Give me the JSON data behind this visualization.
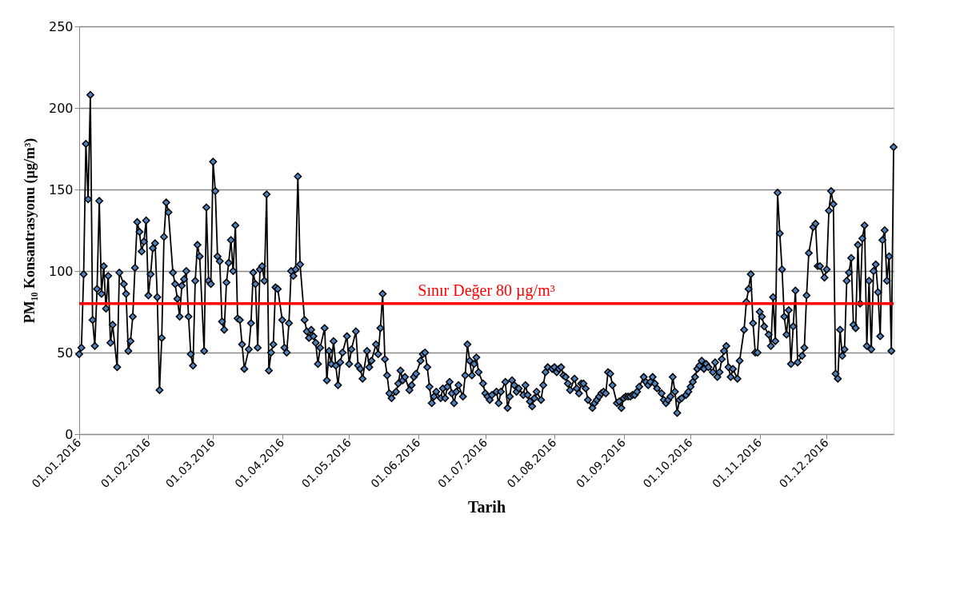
{
  "chart_data": {
    "type": "line",
    "xlabel": "Tarih",
    "ylabel": "PM₁₀ Konsantrasyonu (µg/m³)",
    "xlim": [
      "2016-01-01",
      "2016-12-31"
    ],
    "xticks": [
      {
        "value": "2016-01-01",
        "label": "01.01.2016"
      },
      {
        "value": "2016-02-01",
        "label": "01.02.2016"
      },
      {
        "value": "2016-03-01",
        "label": "01.03.2016"
      },
      {
        "value": "2016-04-01",
        "label": "01.04.2016"
      },
      {
        "value": "2016-05-01",
        "label": "01.05.2016"
      },
      {
        "value": "2016-06-01",
        "label": "01.06.2016"
      },
      {
        "value": "2016-07-01",
        "label": "01.07.2016"
      },
      {
        "value": "2016-08-01",
        "label": "01.08.2016"
      },
      {
        "value": "2016-09-01",
        "label": "01.09.2016"
      },
      {
        "value": "2016-10-01",
        "label": "01.10.2016"
      },
      {
        "value": "2016-11-01",
        "label": "01.11.2016"
      },
      {
        "value": "2016-12-01",
        "label": "01.12.2016"
      }
    ],
    "ylim": [
      0,
      250
    ],
    "yticks": [
      0,
      50,
      100,
      150,
      200,
      250
    ],
    "grid": "y",
    "legend": false,
    "marker": "diamond",
    "line_style": "solid",
    "ref_lines": [
      {
        "axis": "y",
        "value": 80,
        "label": "Sınır Değer 80 µg/m³",
        "color": "#ff0000",
        "line_style": "solid"
      }
    ],
    "series": [
      {
        "color": "#4f81bd",
        "x": [
          "2016-01-01",
          "2016-01-02",
          "2016-01-03",
          "2016-01-04",
          "2016-01-05",
          "2016-01-06",
          "2016-01-07",
          "2016-01-08",
          "2016-01-09",
          "2016-01-10",
          "2016-01-11",
          "2016-01-12",
          "2016-01-13",
          "2016-01-14",
          "2016-01-15",
          "2016-01-16",
          "2016-01-18",
          "2016-01-19",
          "2016-01-21",
          "2016-01-22",
          "2016-01-23",
          "2016-01-24",
          "2016-01-25",
          "2016-01-26",
          "2016-01-27",
          "2016-01-28",
          "2016-01-29",
          "2016-01-30",
          "2016-01-31",
          "2016-02-01",
          "2016-02-02",
          "2016-02-03",
          "2016-02-04",
          "2016-02-05",
          "2016-02-06",
          "2016-02-07",
          "2016-02-08",
          "2016-02-09",
          "2016-02-10",
          "2016-02-12",
          "2016-02-13",
          "2016-02-14",
          "2016-02-15",
          "2016-02-16",
          "2016-02-17",
          "2016-02-18",
          "2016-02-19",
          "2016-02-20",
          "2016-02-21",
          "2016-02-22",
          "2016-02-23",
          "2016-02-24",
          "2016-02-26",
          "2016-02-27",
          "2016-02-28",
          "2016-02-29",
          "2016-03-01",
          "2016-03-02",
          "2016-03-03",
          "2016-03-04",
          "2016-03-05",
          "2016-03-06",
          "2016-03-07",
          "2016-03-08",
          "2016-03-09",
          "2016-03-10",
          "2016-03-11",
          "2016-03-12",
          "2016-03-13",
          "2016-03-14",
          "2016-03-15",
          "2016-03-17",
          "2016-03-18",
          "2016-03-19",
          "2016-03-20",
          "2016-03-21",
          "2016-03-22",
          "2016-03-23",
          "2016-03-24",
          "2016-03-25",
          "2016-03-26",
          "2016-03-27",
          "2016-03-28",
          "2016-03-29",
          "2016-03-30",
          "2016-04-01",
          "2016-04-02",
          "2016-04-03",
          "2016-04-04",
          "2016-04-05",
          "2016-04-06",
          "2016-04-07",
          "2016-04-08",
          "2016-04-09",
          "2016-04-11",
          "2016-04-12",
          "2016-04-13",
          "2016-04-14",
          "2016-04-15",
          "2016-04-16",
          "2016-04-17",
          "2016-04-18",
          "2016-04-20",
          "2016-04-21",
          "2016-04-22",
          "2016-04-23",
          "2016-04-24",
          "2016-04-25",
          "2016-04-26",
          "2016-04-27",
          "2016-04-28",
          "2016-04-30",
          "2016-05-01",
          "2016-05-02",
          "2016-05-04",
          "2016-05-05",
          "2016-05-06",
          "2016-05-07",
          "2016-05-09",
          "2016-05-10",
          "2016-05-11",
          "2016-05-13",
          "2016-05-14",
          "2016-05-15",
          "2016-05-16",
          "2016-05-17",
          "2016-05-18",
          "2016-05-19",
          "2016-05-20",
          "2016-05-22",
          "2016-05-23",
          "2016-05-24",
          "2016-05-25",
          "2016-05-26",
          "2016-05-28",
          "2016-05-29",
          "2016-05-30",
          "2016-05-31",
          "2016-06-02",
          "2016-06-03",
          "2016-06-04",
          "2016-06-05",
          "2016-06-06",
          "2016-06-07",
          "2016-06-08",
          "2016-06-09",
          "2016-06-11",
          "2016-06-12",
          "2016-06-13",
          "2016-06-14",
          "2016-06-15",
          "2016-06-16",
          "2016-06-17",
          "2016-06-18",
          "2016-06-19",
          "2016-06-21",
          "2016-06-22",
          "2016-06-23",
          "2016-06-24",
          "2016-06-25",
          "2016-06-26",
          "2016-06-27",
          "2016-06-28",
          "2016-06-30",
          "2016-07-01",
          "2016-07-02",
          "2016-07-03",
          "2016-07-04",
          "2016-07-06",
          "2016-07-07",
          "2016-07-08",
          "2016-07-10",
          "2016-07-11",
          "2016-07-12",
          "2016-07-13",
          "2016-07-14",
          "2016-07-15",
          "2016-07-16",
          "2016-07-18",
          "2016-07-19",
          "2016-07-20",
          "2016-07-21",
          "2016-07-22",
          "2016-07-23",
          "2016-07-24",
          "2016-07-26",
          "2016-07-27",
          "2016-07-28",
          "2016-07-29",
          "2016-07-31",
          "2016-08-01",
          "2016-08-02",
          "2016-08-03",
          "2016-08-04",
          "2016-08-05",
          "2016-08-06",
          "2016-08-07",
          "2016-08-08",
          "2016-08-10",
          "2016-08-11",
          "2016-08-12",
          "2016-08-13",
          "2016-08-14",
          "2016-08-15",
          "2016-08-16",
          "2016-08-18",
          "2016-08-19",
          "2016-08-20",
          "2016-08-21",
          "2016-08-22",
          "2016-08-23",
          "2016-08-24",
          "2016-08-25",
          "2016-08-26",
          "2016-08-27",
          "2016-08-29",
          "2016-08-30",
          "2016-08-31",
          "2016-09-01",
          "2016-09-02",
          "2016-09-03",
          "2016-09-04",
          "2016-09-05",
          "2016-09-06",
          "2016-09-07",
          "2016-09-08",
          "2016-09-10",
          "2016-09-11",
          "2016-09-12",
          "2016-09-13",
          "2016-09-14",
          "2016-09-15",
          "2016-09-16",
          "2016-09-18",
          "2016-09-19",
          "2016-09-20",
          "2016-09-21",
          "2016-09-22",
          "2016-09-23",
          "2016-09-24",
          "2016-09-25",
          "2016-09-26",
          "2016-09-27",
          "2016-09-29",
          "2016-09-30",
          "2016-10-01",
          "2016-10-02",
          "2016-10-03",
          "2016-10-04",
          "2016-10-05",
          "2016-10-06",
          "2016-10-07",
          "2016-10-08",
          "2016-10-09",
          "2016-10-11",
          "2016-10-12",
          "2016-10-13",
          "2016-10-14",
          "2016-10-15",
          "2016-10-16",
          "2016-10-17",
          "2016-10-18",
          "2016-10-19",
          "2016-10-20",
          "2016-10-22",
          "2016-10-23",
          "2016-10-25",
          "2016-10-26",
          "2016-10-27",
          "2016-10-28",
          "2016-10-29",
          "2016-10-30",
          "2016-10-31",
          "2016-11-01",
          "2016-11-02",
          "2016-11-03",
          "2016-11-05",
          "2016-11-06",
          "2016-11-07",
          "2016-11-08",
          "2016-11-09",
          "2016-11-10",
          "2016-11-11",
          "2016-11-12",
          "2016-11-13",
          "2016-11-14",
          "2016-11-15",
          "2016-11-16",
          "2016-11-17",
          "2016-11-18",
          "2016-11-20",
          "2016-11-21",
          "2016-11-22",
          "2016-11-23",
          "2016-11-25",
          "2016-11-26",
          "2016-11-27",
          "2016-11-28",
          "2016-11-30",
          "2016-12-01",
          "2016-12-02",
          "2016-12-03",
          "2016-12-04",
          "2016-12-05",
          "2016-12-06",
          "2016-12-07",
          "2016-12-08",
          "2016-12-09",
          "2016-12-10",
          "2016-12-11",
          "2016-12-12",
          "2016-12-13",
          "2016-12-14",
          "2016-12-15",
          "2016-12-16",
          "2016-12-17",
          "2016-12-18",
          "2016-12-19",
          "2016-12-20",
          "2016-12-21",
          "2016-12-22",
          "2016-12-23",
          "2016-12-24",
          "2016-12-25",
          "2016-12-26",
          "2016-12-27",
          "2016-12-28",
          "2016-12-29",
          "2016-12-30",
          "2016-12-31"
        ],
        "values": [
          49,
          53,
          98,
          178,
          144,
          208,
          70,
          54,
          89,
          143,
          86,
          103,
          77,
          97,
          56,
          67,
          41,
          99,
          92,
          86,
          51,
          57,
          72,
          102,
          130,
          124,
          112,
          118,
          131,
          85,
          98,
          114,
          117,
          84,
          27,
          59,
          121,
          142,
          136,
          99,
          92,
          83,
          72,
          91,
          95,
          100,
          72,
          49,
          42,
          94,
          116,
          109,
          51,
          139,
          94,
          92,
          167,
          149,
          109,
          106,
          69,
          64,
          93,
          105,
          119,
          100,
          128,
          71,
          70,
          55,
          40,
          52,
          68,
          99,
          92,
          53,
          101,
          103,
          94,
          147,
          39,
          50,
          55,
          90,
          89,
          70,
          53,
          50,
          68,
          100,
          97,
          101,
          158,
          104,
          70,
          63,
          59,
          64,
          60,
          56,
          43,
          53,
          65,
          33,
          51,
          43,
          57,
          42,
          30,
          44,
          50,
          60,
          43,
          52,
          63,
          42,
          40,
          34,
          51,
          41,
          45,
          55,
          49,
          65,
          86,
          46,
          36,
          25,
          22,
          26,
          31,
          39,
          33,
          35,
          27,
          30,
          35,
          37,
          45,
          49,
          50,
          41,
          29,
          19,
          23,
          26,
          22,
          28,
          22,
          29,
          32,
          25,
          19,
          26,
          30,
          23,
          36,
          55,
          45,
          36,
          43,
          47,
          38,
          31,
          25,
          23,
          21,
          24,
          26,
          19,
          26,
          32,
          16,
          23,
          33,
          30,
          26,
          28,
          24,
          30,
          24,
          20,
          17,
          22,
          26,
          21,
          30,
          38,
          41,
          40,
          41,
          38,
          40,
          41,
          36,
          35,
          31,
          27,
          34,
          28,
          25,
          31,
          31,
          28,
          21,
          16,
          19,
          21,
          23,
          25,
          26,
          25,
          38,
          37,
          30,
          19,
          20,
          16,
          22,
          23,
          23,
          23,
          24,
          24,
          26,
          29,
          35,
          32,
          30,
          32,
          35,
          31,
          28,
          25,
          21,
          19,
          21,
          23,
          35,
          26,
          13,
          21,
          22,
          24,
          26,
          29,
          32,
          35,
          40,
          42,
          45,
          40,
          43,
          41,
          38,
          44,
          35,
          38,
          46,
          51,
          54,
          41,
          35,
          40,
          34,
          45,
          64,
          81,
          89,
          98,
          68,
          50,
          50,
          75,
          72,
          66,
          61,
          54,
          84,
          57,
          148,
          123,
          101,
          72,
          61,
          76,
          43,
          66,
          88,
          44,
          48,
          53,
          85,
          111,
          127,
          129,
          103,
          103,
          96,
          101,
          137,
          149,
          141,
          37,
          34,
          64,
          48,
          52,
          94,
          99,
          108,
          67,
          65,
          116,
          80,
          120,
          128,
          54,
          94,
          52,
          100,
          104,
          87,
          60,
          119,
          125,
          94,
          109,
          51,
          176
        ]
      }
    ]
  }
}
